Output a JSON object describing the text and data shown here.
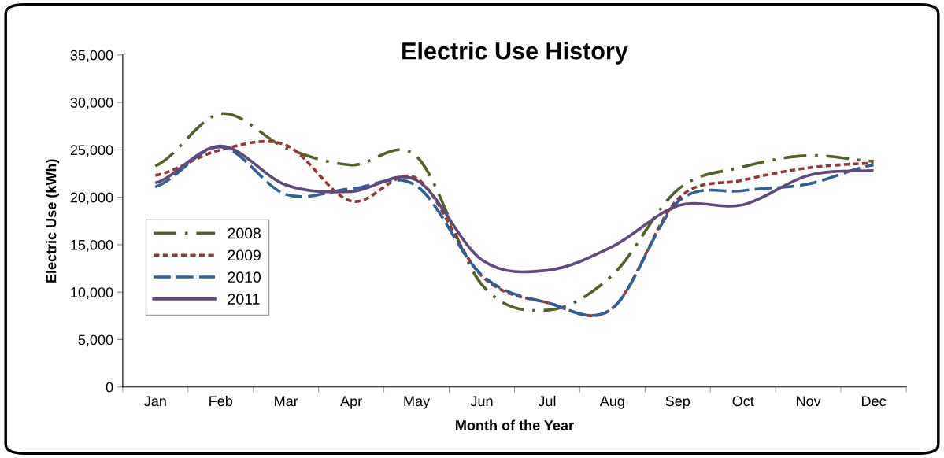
{
  "chart_data": {
    "type": "line",
    "title": "Electric Use History",
    "xlabel": "Month of the Year",
    "ylabel": "Electric Use (kWh)",
    "categories": [
      "Jan",
      "Feb",
      "Mar",
      "Apr",
      "May",
      "Jun",
      "Jul",
      "Aug",
      "Sep",
      "Oct",
      "Nov",
      "Dec"
    ],
    "ylim": [
      0,
      35000
    ],
    "yticks": [
      {
        "value": 0,
        "label": "0"
      },
      {
        "value": 5000,
        "label": "5,000"
      },
      {
        "value": 10000,
        "label": "10,000"
      },
      {
        "value": 15000,
        "label": "15,000"
      },
      {
        "value": 20000,
        "label": "20,000"
      },
      {
        "value": 25000,
        "label": "25,000"
      },
      {
        "value": 30000,
        "label": "30,000"
      },
      {
        "value": 35000,
        "label": "35,000"
      }
    ],
    "grid": false,
    "legend": "left",
    "marker": "none",
    "series": [
      {
        "name": "2008",
        "color": "#4f6228",
        "line_style": "dashdot",
        "values": [
          23300,
          28800,
          25200,
          23400,
          24300,
          10800,
          8100,
          11800,
          20800,
          23200,
          24400,
          23800
        ]
      },
      {
        "name": "2009",
        "color": "#953735",
        "line_style": "dotted",
        "values": [
          22300,
          25000,
          25500,
          19600,
          22000,
          11700,
          8900,
          8300,
          19800,
          21800,
          23100,
          23600
        ]
      },
      {
        "name": "2010",
        "color": "#2e5f97",
        "line_style": "dashed",
        "values": [
          21100,
          25300,
          20300,
          20900,
          21200,
          11800,
          8900,
          8300,
          19500,
          20700,
          21400,
          23400
        ]
      },
      {
        "name": "2011",
        "color": "#604a7b",
        "line_style": "solid",
        "values": [
          21500,
          25400,
          21300,
          20600,
          21800,
          13400,
          12300,
          14800,
          19100,
          19200,
          22300,
          22800
        ]
      }
    ]
  }
}
